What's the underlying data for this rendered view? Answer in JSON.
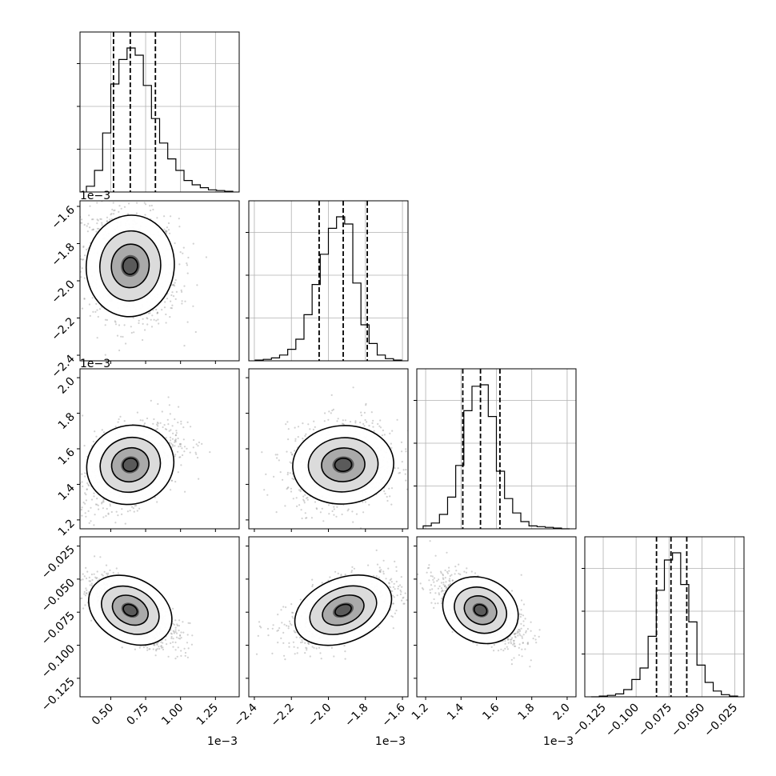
{
  "chart_data": {
    "type": "corner",
    "grid": true,
    "parameters": [
      {
        "range": [
          0.00028,
          0.00142
        ],
        "ticks": [
          0.0005,
          0.00075,
          0.001,
          0.00125
        ],
        "tick_labels": [
          "0.50",
          "0.75",
          "1.00",
          "1.25"
        ],
        "offset": "1e−3",
        "quantiles": [
          0.00052,
          0.00064,
          0.00082
        ]
      },
      {
        "range": [
          -0.00243,
          -0.00157
        ],
        "ticks": [
          -0.0024,
          -0.0022,
          -0.002,
          -0.0018,
          -0.0016
        ],
        "tick_labels": [
          "−2.4",
          "−2.2",
          "−2.0",
          "−1.8",
          "−1.6"
        ],
        "offset": "1e−3",
        "quantiles": [
          -0.00205,
          -0.00192,
          -0.00179
        ]
      },
      {
        "range": [
          0.00115,
          0.00205
        ],
        "ticks": [
          0.0012,
          0.0014,
          0.0016,
          0.0018,
          0.002
        ],
        "tick_labels": [
          "1.2",
          "1.4",
          "1.6",
          "1.8",
          "2.0"
        ],
        "offset": "1e−3",
        "quantiles": [
          0.00141,
          0.00151,
          0.00162
        ]
      },
      {
        "range": [
          -0.139,
          -0.018
        ],
        "ticks": [
          -0.125,
          -0.1,
          -0.075,
          -0.05,
          -0.025
        ],
        "tick_labels": [
          "−0.125",
          "−0.100",
          "−0.075",
          "−0.050",
          "−0.025"
        ],
        "offset": "",
        "quantiles": [
          -0.0845,
          -0.0735,
          -0.0615
        ]
      }
    ],
    "histograms": [
      [
        0.04,
        0.15,
        0.41,
        0.75,
        0.92,
        1.0,
        0.95,
        0.74,
        0.51,
        0.34,
        0.23,
        0.15,
        0.08,
        0.05,
        0.03,
        0.015,
        0.01,
        0.005
      ],
      [
        0.005,
        0.01,
        0.02,
        0.04,
        0.08,
        0.15,
        0.32,
        0.53,
        0.74,
        0.92,
        1.0,
        0.95,
        0.54,
        0.25,
        0.12,
        0.04,
        0.015,
        0.005
      ],
      [
        0.02,
        0.04,
        0.1,
        0.22,
        0.44,
        0.82,
        0.99,
        1.0,
        0.78,
        0.4,
        0.21,
        0.11,
        0.05,
        0.02,
        0.015,
        0.01,
        0.005,
        0.0
      ],
      [
        0.0,
        0.005,
        0.01,
        0.02,
        0.05,
        0.12,
        0.2,
        0.42,
        0.74,
        0.95,
        1.0,
        0.78,
        0.52,
        0.22,
        0.1,
        0.04,
        0.015,
        0.005
      ]
    ],
    "pairs": [
      {
        "row": 1,
        "col": 0,
        "correlation": -0.15
      },
      {
        "row": 2,
        "col": 0,
        "correlation": 0.45
      },
      {
        "row": 2,
        "col": 1,
        "correlation": 0.1
      },
      {
        "row": 3,
        "col": 0,
        "correlation": -0.7
      },
      {
        "row": 3,
        "col": 1,
        "correlation": 0.55
      },
      {
        "row": 3,
        "col": 2,
        "correlation": -0.65
      }
    ]
  }
}
